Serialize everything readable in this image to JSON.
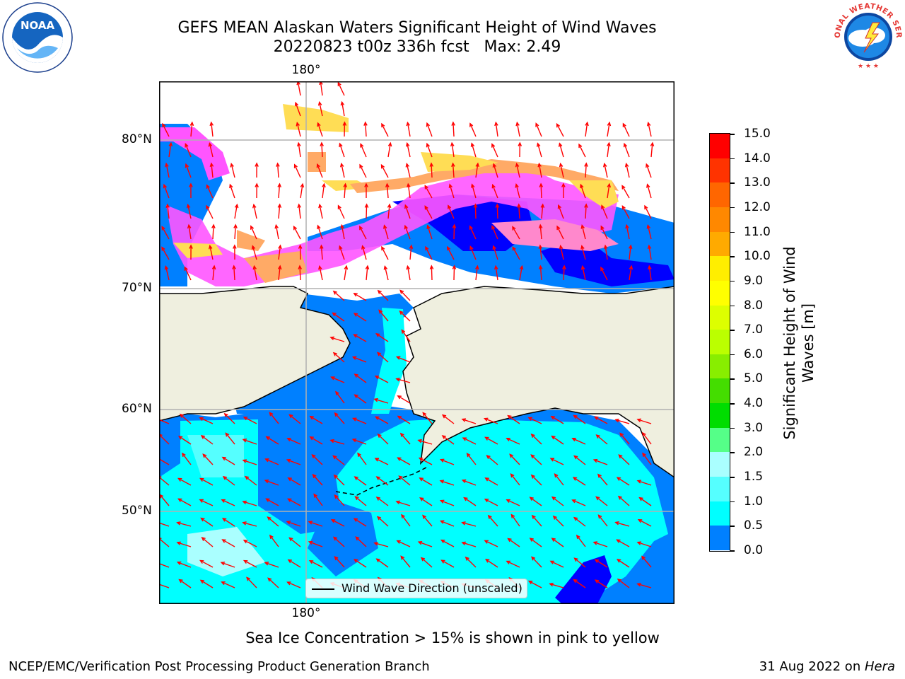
{
  "title": {
    "line1": "GEFS MEAN Alaskan Waters Significant Height of Wind Waves",
    "line2": "20220823 t00z 336h fcst   Max: 2.49"
  },
  "logos": {
    "left": "NOAA",
    "right": "NATIONAL WEATHER SERVICE"
  },
  "map": {
    "lon_tick_top": "180°",
    "lon_tick_bottom": "180°",
    "lat_ticks": [
      "80°N",
      "70°N",
      "60°N",
      "50°N"
    ],
    "legend_label": "Wind Wave Direction (unscaled)",
    "colors": {
      "land": "#efefdf",
      "ocean_low": "#0000ff",
      "ocean_mid": "#0080ff",
      "ocean_high": "#00ffff",
      "ice": [
        "#ff55ff",
        "#ffaa66",
        "#ffdd55"
      ],
      "arrow": "#ff0000",
      "grid": "#b0b0b0"
    }
  },
  "colorbar": {
    "label": "Significant Height of Wind\nWaves [m]",
    "ticks": [
      "15.0",
      "14.0",
      "13.0",
      "12.0",
      "11.0",
      "10.0",
      "9.0",
      "8.0",
      "7.0",
      "6.0",
      "5.0",
      "4.0",
      "3.0",
      "2.0",
      "1.5",
      "1.0",
      "0.5",
      "0.0"
    ],
    "colors": [
      "#ff0000",
      "#ff3300",
      "#ff6600",
      "#ff8800",
      "#ffaa00",
      "#ffee00",
      "#ffff00",
      "#ddff00",
      "#bbff00",
      "#88ee00",
      "#44dd00",
      "#00dd00",
      "#55ff88",
      "#aaffff",
      "#55ffff",
      "#00ffff",
      "#0080ff",
      "#0000ff"
    ]
  },
  "caption": "Sea Ice Concentration > 15% is shown in pink to yellow",
  "footer": {
    "left": "NCEP/EMC/Verification Post Processing Product Generation Branch",
    "right_date": "31 Aug 2022 on ",
    "right_machine": "Hera"
  }
}
